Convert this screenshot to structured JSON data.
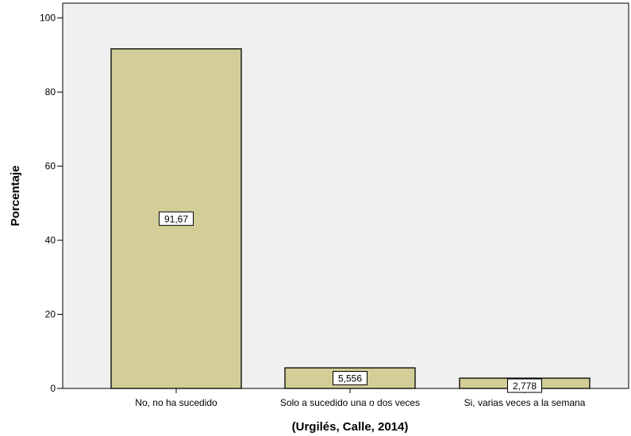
{
  "chart_data": {
    "type": "bar",
    "title": "",
    "xlabel": "(Urgilés, Calle, 2014)",
    "ylabel": "Porcentaje",
    "ylim": [
      0,
      104
    ],
    "yticks": [
      0,
      20,
      40,
      60,
      80,
      100
    ],
    "ytick_labels": [
      "0",
      "20",
      "40",
      "60",
      "80",
      "100"
    ],
    "grid": false,
    "categories": [
      "No, no ha sucedido",
      "Solo a sucedido una o dos veces",
      "Si, varias veces a la semana"
    ],
    "values": [
      91.67,
      5.556,
      2.778
    ],
    "data_labels": [
      "91,67",
      "5,556",
      "2,778"
    ],
    "colors": {
      "bar_fill": "#d3ce97",
      "bar_stroke": "#000000",
      "plot_background": "#f0f0f0",
      "axis": "#000000"
    }
  }
}
